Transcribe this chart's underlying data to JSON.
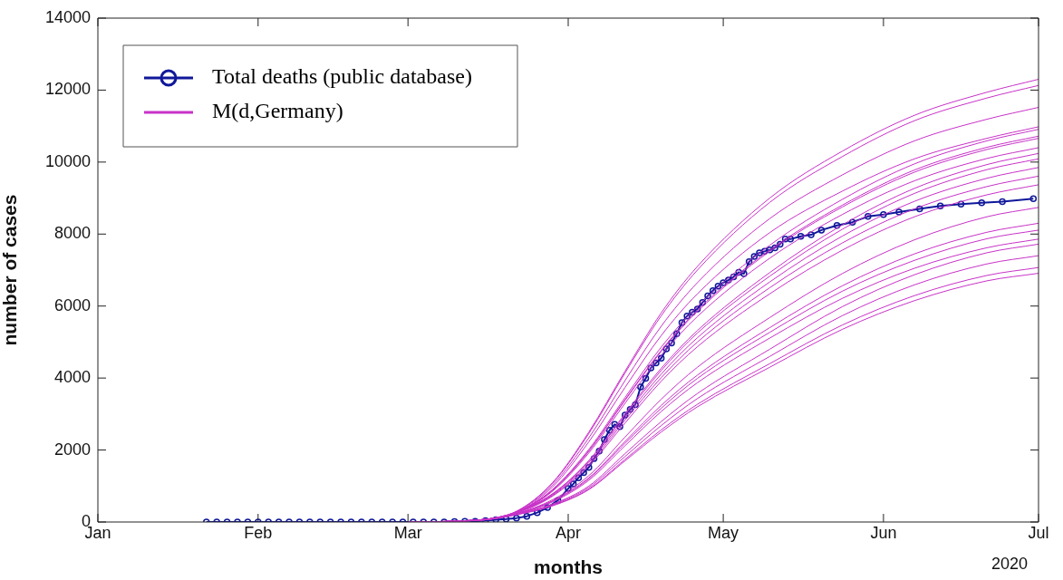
{
  "chart_data": {
    "type": "line",
    "xlabel": "months",
    "ylabel": "number of cases",
    "annotations": [
      "2020"
    ],
    "legend": "top left",
    "grid": false,
    "xlim": [
      "2020-01-01",
      "2020-07-01"
    ],
    "xticks": [
      {
        "value": "2020-01-01",
        "label": "Jan"
      },
      {
        "value": "2020-02-01",
        "label": "Feb"
      },
      {
        "value": "2020-03-01",
        "label": "Mar"
      },
      {
        "value": "2020-04-01",
        "label": "Apr"
      },
      {
        "value": "2020-05-01",
        "label": "May"
      },
      {
        "value": "2020-06-01",
        "label": "Jun"
      },
      {
        "value": "2020-07-01",
        "label": "Jul"
      }
    ],
    "ylim": [
      0,
      14000
    ],
    "yticks": [
      0,
      2000,
      4000,
      6000,
      8000,
      10000,
      12000,
      14000
    ],
    "x": [
      "2020-03-01",
      "2020-03-15",
      "2020-03-22",
      "2020-03-29",
      "2020-04-05",
      "2020-04-12",
      "2020-04-19",
      "2020-04-26",
      "2020-05-10",
      "2020-05-24",
      "2020-06-07",
      "2020-06-21",
      "2020-07-01"
    ],
    "series": [
      {
        "name": "M(d,Germany)",
        "color": "#c832c8",
        "marker": "none",
        "values": [
          0,
          60,
          300,
          1100,
          2500,
          4190,
          5810,
          7100,
          9000,
          10300,
          11300,
          11940,
          12300
        ]
      },
      {
        "color": "#c832c8",
        "marker": "none",
        "values": [
          0,
          60,
          290,
          1080,
          2460,
          4140,
          5730,
          7000,
          8880,
          10150,
          11150,
          11780,
          12130
        ]
      },
      {
        "color": "#c832c8",
        "marker": "none",
        "values": [
          0,
          60,
          280,
          1030,
          2340,
          3930,
          5440,
          6650,
          8430,
          9640,
          10590,
          11190,
          11520
        ]
      },
      {
        "color": "#c832c8",
        "marker": "none",
        "values": [
          0,
          50,
          260,
          980,
          2230,
          3740,
          5180,
          6340,
          8040,
          9190,
          10090,
          10660,
          10980
        ]
      },
      {
        "color": "#c832c8",
        "marker": "none",
        "values": [
          0,
          60,
          270,
          910,
          2020,
          3460,
          4860,
          5990,
          7690,
          8960,
          9950,
          10590,
          10910
        ]
      },
      {
        "color": "#c832c8",
        "marker": "none",
        "values": [
          0,
          60,
          270,
          890,
          1980,
          3400,
          4770,
          5890,
          7560,
          8800,
          9780,
          10410,
          10720
        ]
      },
      {
        "color": "#c832c8",
        "marker": "none",
        "values": [
          0,
          60,
          270,
          880,
          1970,
          3380,
          4740,
          5850,
          7520,
          8750,
          9720,
          10350,
          10660
        ]
      },
      {
        "color": "#c832c8",
        "marker": "none",
        "values": [
          0,
          60,
          260,
          860,
          1920,
          3300,
          4630,
          5710,
          7330,
          8540,
          9480,
          10100,
          10400
        ]
      },
      {
        "color": "#c832c8",
        "marker": "none",
        "values": [
          0,
          60,
          280,
          790,
          1710,
          3010,
          4270,
          5320,
          6930,
          8250,
          9270,
          9930,
          10240
        ]
      },
      {
        "color": "#c832c8",
        "marker": "none",
        "values": [
          0,
          60,
          270,
          780,
          1690,
          2970,
          4210,
          5250,
          6830,
          8130,
          9130,
          9790,
          10090
        ]
      },
      {
        "color": "#c832c8",
        "marker": "none",
        "values": [
          0,
          60,
          270,
          760,
          1650,
          2900,
          4110,
          5120,
          6670,
          7940,
          8910,
          9550,
          9850
        ]
      },
      {
        "color": "#c832c8",
        "marker": "none",
        "values": [
          0,
          60,
          260,
          740,
          1600,
          2830,
          4010,
          5000,
          6510,
          7750,
          8700,
          9320,
          9610
        ]
      },
      {
        "color": "#c832c8",
        "marker": "none",
        "values": [
          0,
          60,
          250,
          720,
          1560,
          2750,
          3910,
          4870,
          6340,
          7550,
          8480,
          9090,
          9370
        ]
      },
      {
        "color": "#c832c8",
        "marker": "none",
        "values": [
          0,
          60,
          240,
          620,
          1290,
          2360,
          3410,
          4300,
          5680,
          6900,
          7840,
          8480,
          8740
        ]
      },
      {
        "color": "#c832c8",
        "marker": "none",
        "values": [
          0,
          50,
          230,
          590,
          1230,
          2240,
          3240,
          4080,
          5400,
          6560,
          7450,
          8050,
          8300
        ]
      },
      {
        "color": "#c832c8",
        "marker": "none",
        "values": [
          0,
          50,
          230,
          580,
          1200,
          2190,
          3160,
          3990,
          5270,
          6410,
          7270,
          7870,
          8110
        ]
      },
      {
        "color": "#c832c8",
        "marker": "none",
        "values": [
          0,
          50,
          220,
          560,
          1160,
          2120,
          3070,
          3870,
          5110,
          6210,
          7050,
          7620,
          7860
        ]
      },
      {
        "color": "#c832c8",
        "marker": "none",
        "values": [
          0,
          50,
          220,
          500,
          1000,
          1900,
          2790,
          3570,
          4800,
          5980,
          6870,
          7480,
          7720
        ]
      },
      {
        "color": "#c832c8",
        "marker": "none",
        "values": [
          0,
          50,
          210,
          480,
          960,
          1820,
          2680,
          3430,
          4600,
          5730,
          6590,
          7170,
          7400
        ]
      },
      {
        "color": "#c832c8",
        "marker": "none",
        "values": [
          0,
          50,
          210,
          460,
          920,
          1740,
          2560,
          3270,
          4400,
          5470,
          6290,
          6850,
          7070
        ]
      },
      {
        "color": "#c832c8",
        "marker": "none",
        "values": [
          0,
          50,
          200,
          450,
          900,
          1700,
          2500,
          3200,
          4300,
          5350,
          6150,
          6700,
          6910
        ]
      },
      {
        "name": "Total deaths (public database)",
        "color": "#10189a",
        "marker": "circle",
        "x": [
          "2020-01-22",
          "2020-01-24",
          "2020-01-26",
          "2020-01-28",
          "2020-01-30",
          "2020-02-01",
          "2020-02-03",
          "2020-02-05",
          "2020-02-07",
          "2020-02-09",
          "2020-02-11",
          "2020-02-13",
          "2020-02-15",
          "2020-02-17",
          "2020-02-19",
          "2020-02-21",
          "2020-02-23",
          "2020-02-25",
          "2020-02-27",
          "2020-02-29",
          "2020-03-02",
          "2020-03-04",
          "2020-03-06",
          "2020-03-08",
          "2020-03-10",
          "2020-03-12",
          "2020-03-14",
          "2020-03-16",
          "2020-03-18",
          "2020-03-20",
          "2020-03-22",
          "2020-03-24",
          "2020-03-26",
          "2020-03-28",
          "2020-03-30",
          "2020-04-01",
          "2020-04-02",
          "2020-04-03",
          "2020-04-04",
          "2020-04-05",
          "2020-04-06",
          "2020-04-07",
          "2020-04-08",
          "2020-04-09",
          "2020-04-10",
          "2020-04-11",
          "2020-04-12",
          "2020-04-13",
          "2020-04-14",
          "2020-04-15",
          "2020-04-16",
          "2020-04-17",
          "2020-04-18",
          "2020-04-19",
          "2020-04-20",
          "2020-04-21",
          "2020-04-22",
          "2020-04-23",
          "2020-04-24",
          "2020-04-25",
          "2020-04-26",
          "2020-04-27",
          "2020-04-28",
          "2020-04-29",
          "2020-04-30",
          "2020-05-01",
          "2020-05-02",
          "2020-05-03",
          "2020-05-04",
          "2020-05-05",
          "2020-05-06",
          "2020-05-07",
          "2020-05-08",
          "2020-05-09",
          "2020-05-10",
          "2020-05-11",
          "2020-05-12",
          "2020-05-13",
          "2020-05-14",
          "2020-05-16",
          "2020-05-18",
          "2020-05-20",
          "2020-05-23",
          "2020-05-26",
          "2020-05-29",
          "2020-06-01",
          "2020-06-04",
          "2020-06-08",
          "2020-06-12",
          "2020-06-16",
          "2020-06-20",
          "2020-06-24",
          "2020-06-30"
        ],
        "values": [
          0,
          0,
          0,
          0,
          0,
          0,
          0,
          0,
          0,
          0,
          0,
          0,
          0,
          0,
          0,
          0,
          0,
          0,
          0,
          0,
          0,
          0,
          0,
          0,
          10,
          20,
          20,
          40,
          60,
          80,
          110,
          160,
          260,
          400,
          600,
          930,
          1060,
          1230,
          1370,
          1520,
          1760,
          1970,
          2290,
          2550,
          2710,
          2650,
          2970,
          3130,
          3260,
          3750,
          3990,
          4280,
          4420,
          4550,
          4810,
          4970,
          5230,
          5540,
          5720,
          5830,
          5920,
          6100,
          6280,
          6430,
          6550,
          6650,
          6720,
          6810,
          6940,
          6900,
          7230,
          7380,
          7480,
          7520,
          7560,
          7620,
          7720,
          7860,
          7860,
          7940,
          7980,
          8110,
          8240,
          8330,
          8490,
          8540,
          8610,
          8700,
          8780,
          8830,
          8870,
          8900,
          8980
        ]
      }
    ]
  }
}
